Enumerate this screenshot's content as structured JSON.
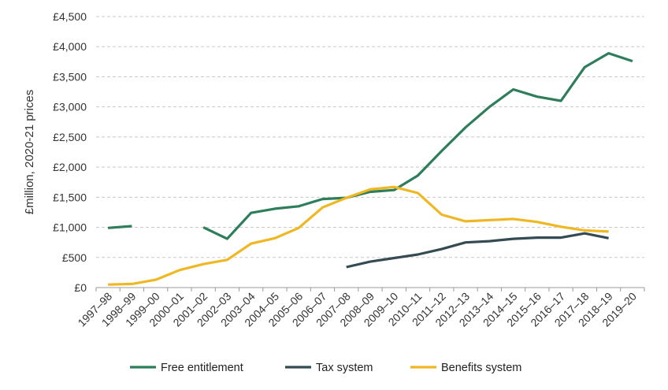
{
  "chart_data": {
    "type": "line",
    "title": "",
    "xlabel": "",
    "ylabel": "£million, 2020-21 prices",
    "categories": [
      "1997–98",
      "1998–99",
      "1999–00",
      "2000–01",
      "2001–02",
      "2002–03",
      "2003–04",
      "2004–05",
      "2005–06",
      "2006–07",
      "2007–08",
      "2008–09",
      "2009–10",
      "2010–11",
      "2011–12",
      "2012–13",
      "2013–14",
      "2014–15",
      "2015–16",
      "2016–17",
      "2017–18",
      "2018–19",
      "2019–20"
    ],
    "ylim": [
      0,
      4500
    ],
    "yticks": [
      0,
      500,
      1000,
      1500,
      2000,
      2500,
      3000,
      3500,
      4000,
      4500
    ],
    "ytick_labels": [
      "£0",
      "£500",
      "£1,000",
      "£1,500",
      "£2,000",
      "£2,500",
      "£3,000",
      "£3,500",
      "£4,000",
      "£4,500"
    ],
    "grid": "horizontal dashed",
    "legend_position": "bottom",
    "series": [
      {
        "name": "Free entitlement",
        "color": "#2e7d5b",
        "values": [
          990,
          1020,
          null,
          null,
          1000,
          810,
          1240,
          1310,
          1350,
          1470,
          1490,
          1590,
          1620,
          1860,
          2270,
          2660,
          3000,
          3290,
          3170,
          3100,
          3660,
          3890,
          3760
        ]
      },
      {
        "name": "Tax system",
        "color": "#354b53",
        "values": [
          null,
          null,
          null,
          null,
          null,
          null,
          null,
          null,
          null,
          null,
          340,
          430,
          490,
          550,
          640,
          750,
          770,
          810,
          830,
          830,
          900,
          820,
          null
        ]
      },
      {
        "name": "Benefits system",
        "color": "#efb724",
        "values": [
          50,
          60,
          130,
          290,
          390,
          460,
          730,
          820,
          990,
          1330,
          1490,
          1630,
          1670,
          1570,
          1210,
          1100,
          1120,
          1140,
          1090,
          1010,
          950,
          930,
          null
        ]
      }
    ]
  }
}
